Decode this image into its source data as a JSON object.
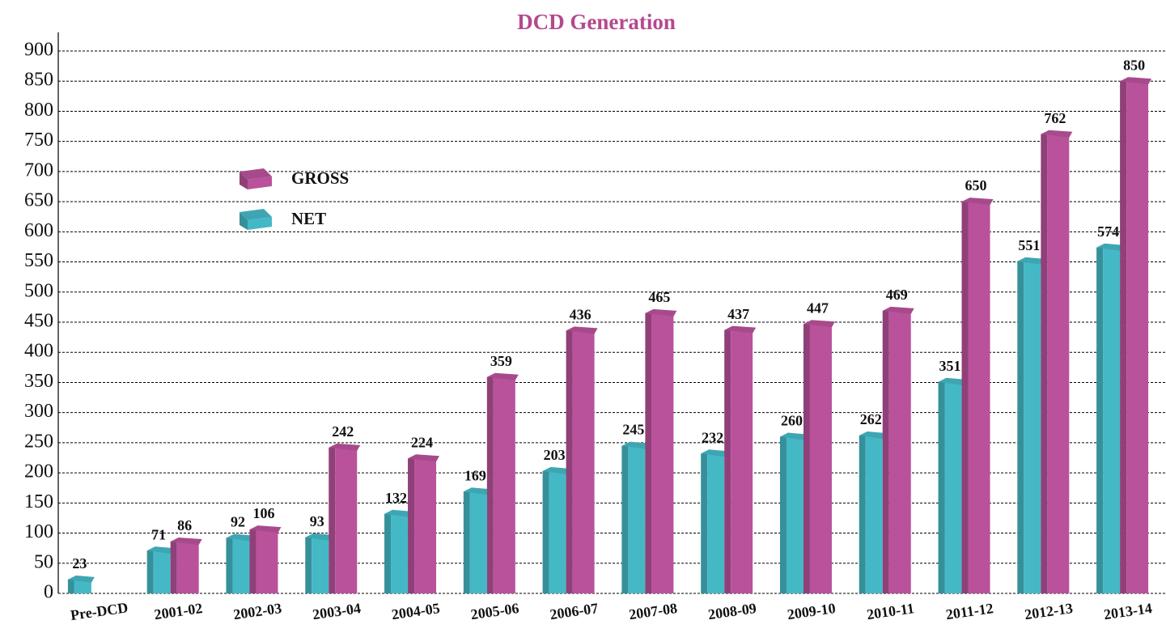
{
  "chart_data": {
    "type": "bar3d",
    "title": "DCD Generation",
    "categories": [
      "Pre-DCD",
      "2001-02",
      "2002-03",
      "2003-04",
      "2004-05",
      "2005-06",
      "2006-07",
      "2007-08",
      "2008-09",
      "2009-10",
      "2010-11",
      "2011-12",
      "2012-13",
      "2013-14"
    ],
    "series": [
      {
        "name": "GROSS",
        "color": "#b9529b",
        "values": [
          null,
          86,
          106,
          242,
          224,
          359,
          436,
          465,
          437,
          447,
          469,
          650,
          762,
          850
        ]
      },
      {
        "name": "NET",
        "color": "#45b8c6",
        "values": [
          23,
          71,
          92,
          93,
          132,
          169,
          203,
          245,
          232,
          260,
          262,
          351,
          551,
          574
        ]
      }
    ],
    "ylim": [
      0,
      900
    ],
    "yticks": [
      0,
      50,
      100,
      150,
      200,
      250,
      300,
      350,
      400,
      450,
      500,
      550,
      600,
      650,
      700,
      750,
      800,
      850,
      900
    ],
    "grid": true,
    "legend": "upper left"
  }
}
